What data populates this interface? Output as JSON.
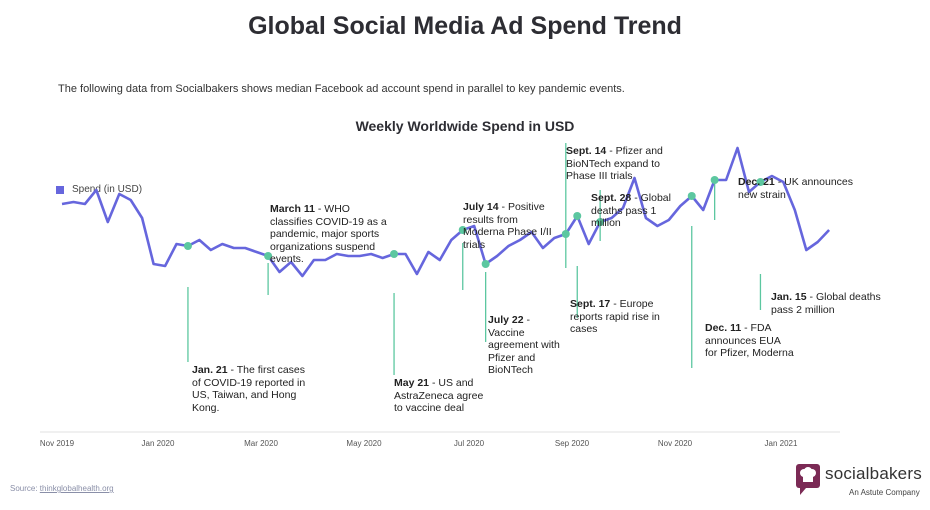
{
  "title": "Global Social Media Ad Spend Trend",
  "description": "The following data from Socialbakers shows median Facebook ad account spend in parallel to key pandemic events.",
  "chart_data": {
    "type": "line",
    "title": "Weekly Worldwide Spend in USD",
    "legend": {
      "label": "Spend (in USD)",
      "position": "left"
    },
    "color": "#6666dd",
    "marker_color": "#5cc7a0",
    "x_ticks": [
      "Nov 2019",
      "Jan 2020",
      "Mar 2020",
      "May 2020",
      "Jul 2020",
      "Sep 2020",
      "Nov 2020",
      "Jan 2021"
    ],
    "grid": false,
    "x_weeks": [
      0,
      1,
      2,
      3,
      4,
      5,
      6,
      7,
      8,
      9,
      10,
      11,
      12,
      13,
      14,
      15,
      16,
      17,
      18,
      19,
      20,
      21,
      22,
      23,
      24,
      25,
      26,
      27,
      28,
      29,
      30,
      31,
      32,
      33,
      34,
      35,
      36,
      37,
      38,
      39,
      40,
      41,
      42,
      43,
      44,
      45,
      46,
      47,
      48,
      49,
      50,
      51,
      52,
      53,
      54,
      55,
      56,
      57,
      58,
      59,
      60,
      61,
      62,
      63,
      64,
      65,
      66,
      67
    ],
    "values": [
      59,
      60,
      59,
      66,
      50,
      64,
      61,
      52,
      29,
      28,
      39,
      38,
      41,
      36,
      39,
      37,
      37,
      35,
      33,
      25,
      30,
      23,
      31,
      31,
      34,
      33,
      33,
      34,
      32,
      34,
      34,
      24,
      35,
      31,
      41,
      46,
      48,
      29,
      33,
      38,
      41,
      45,
      37,
      42,
      44,
      53,
      39,
      50,
      52,
      57,
      72,
      52,
      48,
      51,
      58,
      63,
      56,
      71,
      71,
      87,
      65,
      70,
      73,
      70,
      56,
      36,
      40,
      46
    ]
  },
  "annotations": [
    {
      "week": 11,
      "bold": "Jan. 21",
      "text": " - The first cases of COVID-19 reported in US, Taiwan, and Hong Kong."
    },
    {
      "week": 18,
      "bold": "March 11",
      "text": " - WHO classifies COVID-19 as a pandemic, major sports organizations suspend events."
    },
    {
      "week": 29,
      "bold": "May 21",
      "text": " - US and AstraZeneca agree to vaccine deal"
    },
    {
      "week": 35,
      "bold": "July 14",
      "text": " - Positive results from Moderna Phase I/II trials"
    },
    {
      "week": 37,
      "bold": "July 22",
      "text": " - Vaccine agreement with Pfizer and BioNTech"
    },
    {
      "week": 44,
      "bold": "Sept. 14",
      "text": " - Pfizer and BioNTech expand to Phase III trials"
    },
    {
      "week": 45,
      "bold": "Sept. 17",
      "text": " - Europe reports rapid rise in cases"
    },
    {
      "week": 47,
      "bold": "Sept. 28",
      "text": " -  Global deaths pass 1 million"
    },
    {
      "week": 55,
      "bold": "Dec. 11",
      "text": " - FDA announces EUA for Pfizer, Moderna"
    },
    {
      "week": 57,
      "bold": "Dec. 21",
      "text": " - UK announces new strain"
    },
    {
      "week": 61,
      "bold": "Jan. 15",
      "text": " - Global deaths pass 2 million"
    }
  ],
  "source": {
    "label": "Source: ",
    "link": "thinkglobalhealth.org"
  },
  "logo": {
    "name": "socialbakers",
    "tagline": "An Astute Company"
  }
}
